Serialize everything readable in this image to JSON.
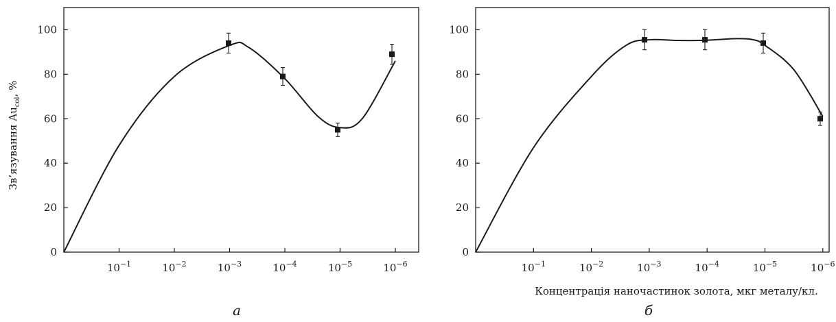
{
  "chart_data": [
    {
      "type": "scatter",
      "panel_label": "а",
      "ylabel": "Зв’язування Au",
      "ylabel_sub": "col",
      "ylabel_unit": ", %",
      "xlabel": "",
      "ylim": [
        0,
        110
      ],
      "y_ticks": [
        0,
        20,
        40,
        60,
        80,
        100
      ],
      "x_ticks": [
        {
          "base": "10",
          "exp": "−1"
        },
        {
          "base": "10",
          "exp": "−2"
        },
        {
          "base": "10",
          "exp": "−3"
        },
        {
          "base": "10",
          "exp": "−4"
        },
        {
          "base": "10",
          "exp": "−5"
        },
        {
          "base": "10",
          "exp": "−6"
        }
      ],
      "points": [
        {
          "x": "10^-3",
          "y": 94,
          "err": 4.5
        },
        {
          "x": "10^-4",
          "y": 79,
          "err": 4
        },
        {
          "x": "10^-5",
          "y": 55,
          "err": 3
        },
        {
          "x": "10^-6",
          "y": 89,
          "err": 4.5
        }
      ],
      "curve": [
        [
          0,
          0
        ],
        [
          1,
          48
        ],
        [
          2,
          79
        ],
        [
          3,
          93
        ],
        [
          3.35,
          92
        ],
        [
          4,
          78
        ],
        [
          4.6,
          61
        ],
        [
          5,
          56
        ],
        [
          5.4,
          60
        ],
        [
          6,
          86
        ]
      ]
    },
    {
      "type": "scatter",
      "panel_label": "б",
      "ylabel": "",
      "xlabel": "Концентрація наночастинок золота, мкг металу/кл.",
      "ylim": [
        0,
        110
      ],
      "y_ticks": [
        0,
        20,
        40,
        60,
        80,
        100
      ],
      "x_ticks": [
        {
          "base": "10",
          "exp": "−1"
        },
        {
          "base": "10",
          "exp": "−2"
        },
        {
          "base": "10",
          "exp": "−3"
        },
        {
          "base": "10",
          "exp": "−4"
        },
        {
          "base": "10",
          "exp": "−5"
        },
        {
          "base": "10",
          "exp": "−6"
        }
      ],
      "points": [
        {
          "x": "10^-3",
          "y": 95.5,
          "err": 4.5
        },
        {
          "x": "10^-4",
          "y": 95.5,
          "err": 4.5
        },
        {
          "x": "10^-5",
          "y": 94,
          "err": 4.5
        },
        {
          "x": "10^-6",
          "y": 60,
          "err": 3
        }
      ],
      "curve": [
        [
          0,
          0
        ],
        [
          1,
          47
        ],
        [
          2,
          79
        ],
        [
          2.6,
          93
        ],
        [
          3,
          95.5
        ],
        [
          3.5,
          95.2
        ],
        [
          4,
          95.3
        ],
        [
          4.5,
          96
        ],
        [
          4.8,
          95.5
        ],
        [
          5,
          93
        ],
        [
          5.5,
          82
        ],
        [
          6,
          61
        ]
      ]
    }
  ]
}
